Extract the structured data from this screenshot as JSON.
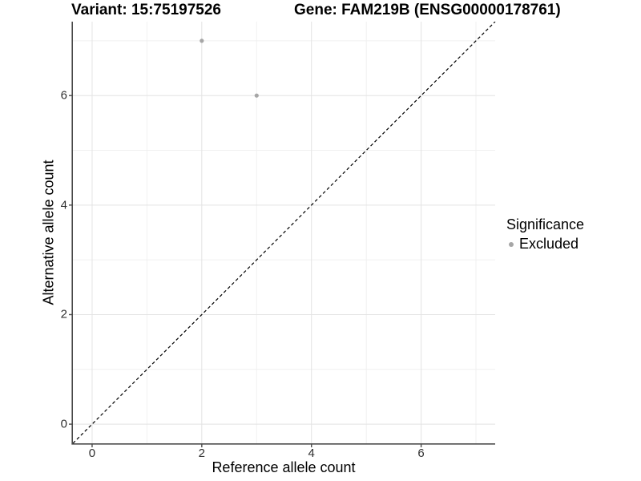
{
  "header": {
    "variant_title": "Variant: 15:75197526",
    "gene_title": "Gene: FAM219B (ENSG00000178761)"
  },
  "legend": {
    "title": "Significance",
    "items": [
      {
        "label": "Excluded",
        "color": "#A6A6A6"
      }
    ]
  },
  "chart_data": {
    "type": "scatter",
    "xlabel": "Reference allele count",
    "ylabel": "Alternative allele count",
    "xlim": [
      -0.35,
      7.35
    ],
    "ylim": [
      -0.35,
      7.35
    ],
    "x_breaks": [
      0,
      2,
      4,
      6
    ],
    "y_breaks": [
      0,
      2,
      4,
      6
    ],
    "x_minor_breaks": [
      1,
      3,
      5,
      7
    ],
    "y_minor_breaks": [
      1,
      3,
      5,
      7
    ],
    "grid": true,
    "legend_position": "right",
    "series": [
      {
        "name": "Excluded",
        "color": "#A6A6A6",
        "points": [
          {
            "x": 2,
            "y": 7
          },
          {
            "x": 3,
            "y": 6
          }
        ]
      }
    ],
    "reference_line": {
      "kind": "identity-diagonal",
      "style": "dashed",
      "color": "#000000"
    },
    "colors": {
      "point": "#A6A6A6",
      "grid_major": "#E3E3E3",
      "grid_minor": "#F0F0F0",
      "axis_line": "#4A4A4A",
      "tick_text": "#303030",
      "background": "#FFFFFF"
    }
  }
}
